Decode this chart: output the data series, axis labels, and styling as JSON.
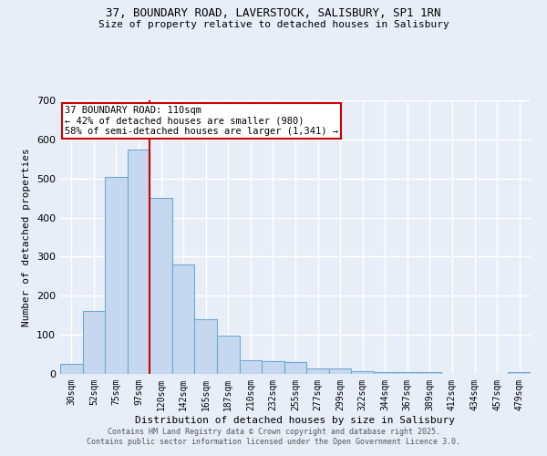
{
  "title_line1": "37, BOUNDARY ROAD, LAVERSTOCK, SALISBURY, SP1 1RN",
  "title_line2": "Size of property relative to detached houses in Salisbury",
  "xlabel": "Distribution of detached houses by size in Salisbury",
  "ylabel": "Number of detached properties",
  "categories": [
    "30sqm",
    "52sqm",
    "75sqm",
    "97sqm",
    "120sqm",
    "142sqm",
    "165sqm",
    "187sqm",
    "210sqm",
    "232sqm",
    "255sqm",
    "277sqm",
    "299sqm",
    "322sqm",
    "344sqm",
    "367sqm",
    "389sqm",
    "412sqm",
    "434sqm",
    "457sqm",
    "479sqm"
  ],
  "values": [
    25,
    160,
    505,
    575,
    450,
    280,
    140,
    98,
    35,
    33,
    30,
    13,
    13,
    6,
    5,
    5,
    5,
    0,
    0,
    0,
    5
  ],
  "bar_color": "#c5d8ef",
  "bar_edge_color": "#6aaad4",
  "vline_index": 3.5,
  "annotation_text": "37 BOUNDARY ROAD: 110sqm\n← 42% of detached houses are smaller (980)\n58% of semi-detached houses are larger (1,341) →",
  "annotation_box_facecolor": "#ffffff",
  "annotation_box_edgecolor": "#cc0000",
  "vline_color": "#cc0000",
  "ylim": [
    0,
    700
  ],
  "yticks": [
    0,
    100,
    200,
    300,
    400,
    500,
    600,
    700
  ],
  "background_color": "#e8eef8",
  "plot_bg_color": "#e8eef8",
  "grid_color": "#ffffff",
  "footer_line1": "Contains HM Land Registry data © Crown copyright and database right 2025.",
  "footer_line2": "Contains public sector information licensed under the Open Government Licence 3.0."
}
